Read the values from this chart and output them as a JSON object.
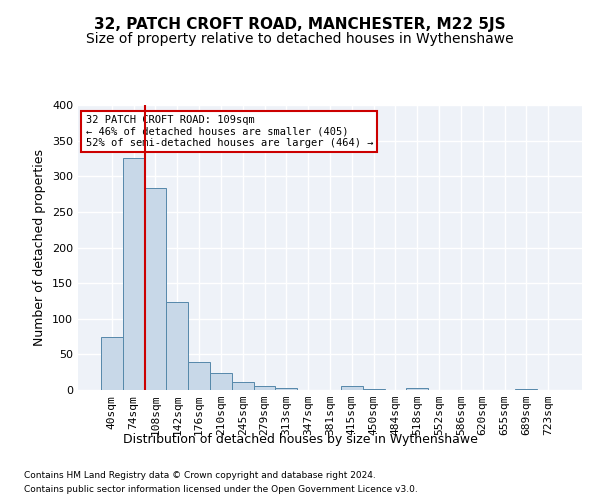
{
  "title": "32, PATCH CROFT ROAD, MANCHESTER, M22 5JS",
  "subtitle": "Size of property relative to detached houses in Wythenshawe",
  "xlabel": "Distribution of detached houses by size in Wythenshawe",
  "ylabel": "Number of detached properties",
  "footer_line1": "Contains HM Land Registry data © Crown copyright and database right 2024.",
  "footer_line2": "Contains public sector information licensed under the Open Government Licence v3.0.",
  "bin_labels": [
    "40sqm",
    "74sqm",
    "108sqm",
    "142sqm",
    "176sqm",
    "210sqm",
    "245sqm",
    "279sqm",
    "313sqm",
    "347sqm",
    "381sqm",
    "415sqm",
    "450sqm",
    "484sqm",
    "518sqm",
    "552sqm",
    "586sqm",
    "620sqm",
    "655sqm",
    "689sqm",
    "723sqm"
  ],
  "bar_values": [
    75,
    325,
    283,
    123,
    39,
    24,
    11,
    5,
    3,
    0,
    0,
    5,
    1,
    0,
    3,
    0,
    0,
    0,
    0,
    2,
    0
  ],
  "bar_color": "#c8d8e8",
  "bar_edge_color": "#5588aa",
  "vline_color": "#cc0000",
  "vline_pos": 1.5,
  "annotation_text": "32 PATCH CROFT ROAD: 109sqm\n← 46% of detached houses are smaller (405)\n52% of semi-detached houses are larger (464) →",
  "annotation_box_color": "white",
  "annotation_box_edge_color": "#cc0000",
  "ylim": [
    0,
    400
  ],
  "yticks": [
    0,
    50,
    100,
    150,
    200,
    250,
    300,
    350,
    400
  ],
  "bg_color": "#eef2f8",
  "grid_color": "#ffffff",
  "title_fontsize": 11,
  "subtitle_fontsize": 10,
  "axis_label_fontsize": 9,
  "tick_fontsize": 8
}
